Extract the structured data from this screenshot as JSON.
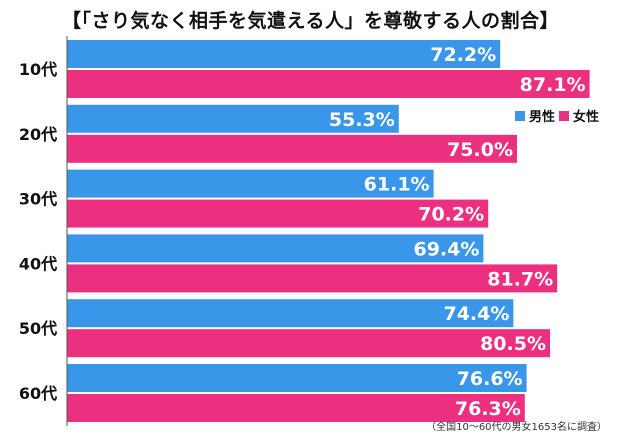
{
  "title": "【「さり気なく相手を気遣える人」を尊敬する人の割合】",
  "note": "（全国10～60代の男女1653名に調査）",
  "colors": {
    "male": "#3a96e8",
    "female": "#ec2f7e",
    "axis": "#555555"
  },
  "chart_data": {
    "type": "bar",
    "orientation": "horizontal",
    "categories": [
      "10代",
      "20代",
      "30代",
      "40代",
      "50代",
      "60代"
    ],
    "series": [
      {
        "name": "男性",
        "values": [
          72.2,
          55.3,
          61.1,
          69.4,
          74.4,
          76.6
        ]
      },
      {
        "name": "女性",
        "values": [
          87.1,
          75.0,
          70.2,
          81.7,
          80.5,
          76.3
        ]
      }
    ],
    "value_labels": {
      "male": [
        "72.2%",
        "55.3%",
        "61.1%",
        "69.4%",
        "74.4%",
        "76.6%"
      ],
      "female": [
        "87.1%",
        "75.0%",
        "70.2%",
        "81.7%",
        "80.5%",
        "76.3%"
      ]
    },
    "xlim": [
      0,
      100
    ],
    "legend": "right, inside second group",
    "grid": false
  }
}
